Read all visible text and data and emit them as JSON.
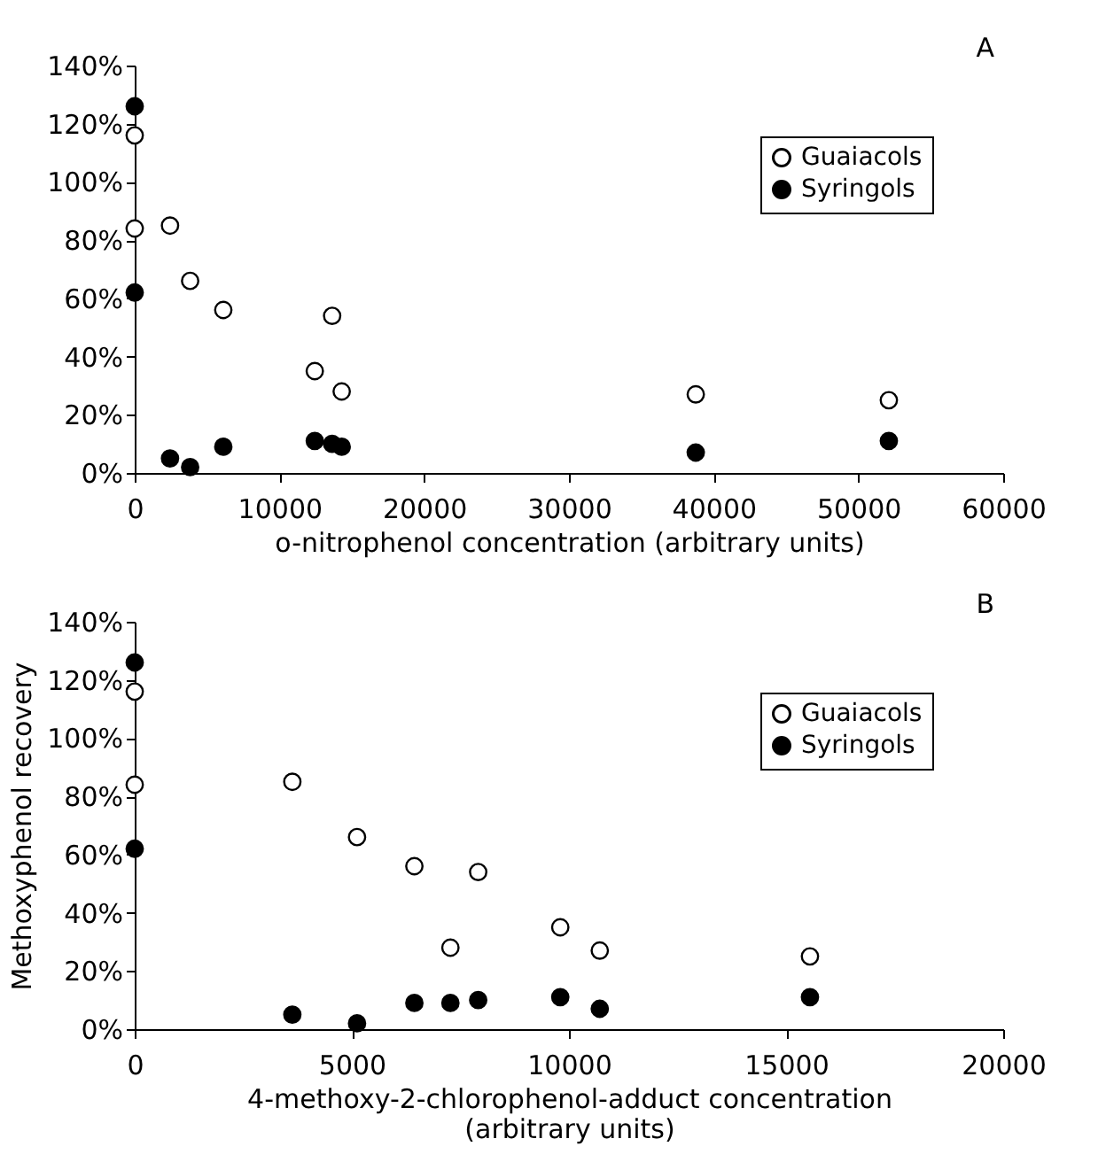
{
  "chart_data": [
    {
      "type": "scatter",
      "xlabel": "o-nitrophenol concentration (arbitrary units)",
      "annotations": [
        "A"
      ],
      "xlim": [
        0,
        60000
      ],
      "xticks": [
        0,
        10000,
        20000,
        30000,
        40000,
        50000,
        60000
      ],
      "ylim": [
        0,
        140
      ],
      "yticks": [
        {
          "value": 0,
          "label": "0%"
        },
        {
          "value": 20,
          "label": "20%"
        },
        {
          "value": 40,
          "label": "40%"
        },
        {
          "value": 60,
          "label": "60%"
        },
        {
          "value": 80,
          "label": "80%"
        },
        {
          "value": 100,
          "label": "100%"
        },
        {
          "value": 120,
          "label": "120%"
        },
        {
          "value": 140,
          "label": "140%"
        }
      ],
      "grid": false,
      "legend": "top right",
      "marker": "circle",
      "series": [
        {
          "name": "Guaiacols",
          "color": "#ffffff",
          "x": [
            0,
            0,
            2440,
            3830,
            6120,
            12440,
            13640,
            14300,
            38760,
            52100
          ],
          "values": [
            116,
            84,
            85,
            66,
            56,
            35,
            54,
            28,
            27,
            25
          ]
        },
        {
          "name": "Syringols",
          "color": "#000000",
          "x": [
            0,
            0,
            2440,
            3830,
            6120,
            12440,
            13640,
            14300,
            38760,
            52100
          ],
          "values": [
            126,
            62,
            5,
            2,
            9,
            11,
            10,
            9,
            7,
            11
          ]
        }
      ]
    },
    {
      "type": "scatter",
      "xlabel": "4-methoxy-2-chlorophenol-adduct concentration\n(arbitrary units)",
      "ylabel": "Methoxyphenol recovery",
      "annotations": [
        "B"
      ],
      "xlim": [
        0,
        20000
      ],
      "xticks": [
        0,
        5000,
        10000,
        15000,
        20000
      ],
      "ylim": [
        0,
        140
      ],
      "yticks": [
        {
          "value": 0,
          "label": "0%"
        },
        {
          "value": 20,
          "label": "20%"
        },
        {
          "value": 40,
          "label": "40%"
        },
        {
          "value": 60,
          "label": "60%"
        },
        {
          "value": 80,
          "label": "80%"
        },
        {
          "value": 100,
          "label": "100%"
        },
        {
          "value": 120,
          "label": "120%"
        },
        {
          "value": 140,
          "label": "140%"
        }
      ],
      "grid": false,
      "legend": "top right",
      "marker": "circle",
      "series": [
        {
          "name": "Guaiacols",
          "color": "#ffffff",
          "x": [
            0,
            0,
            3630,
            5120,
            6440,
            7910,
            7270,
            9800,
            10710,
            15550
          ],
          "values": [
            116,
            84,
            85,
            66,
            56,
            54,
            28,
            35,
            27,
            25
          ]
        },
        {
          "name": "Syringols",
          "color": "#000000",
          "x": [
            0,
            0,
            3630,
            5120,
            6440,
            7270,
            7910,
            9800,
            10710,
            15550
          ],
          "values": [
            126,
            62,
            5,
            2,
            9,
            9,
            10,
            11,
            7,
            11
          ]
        }
      ]
    }
  ]
}
